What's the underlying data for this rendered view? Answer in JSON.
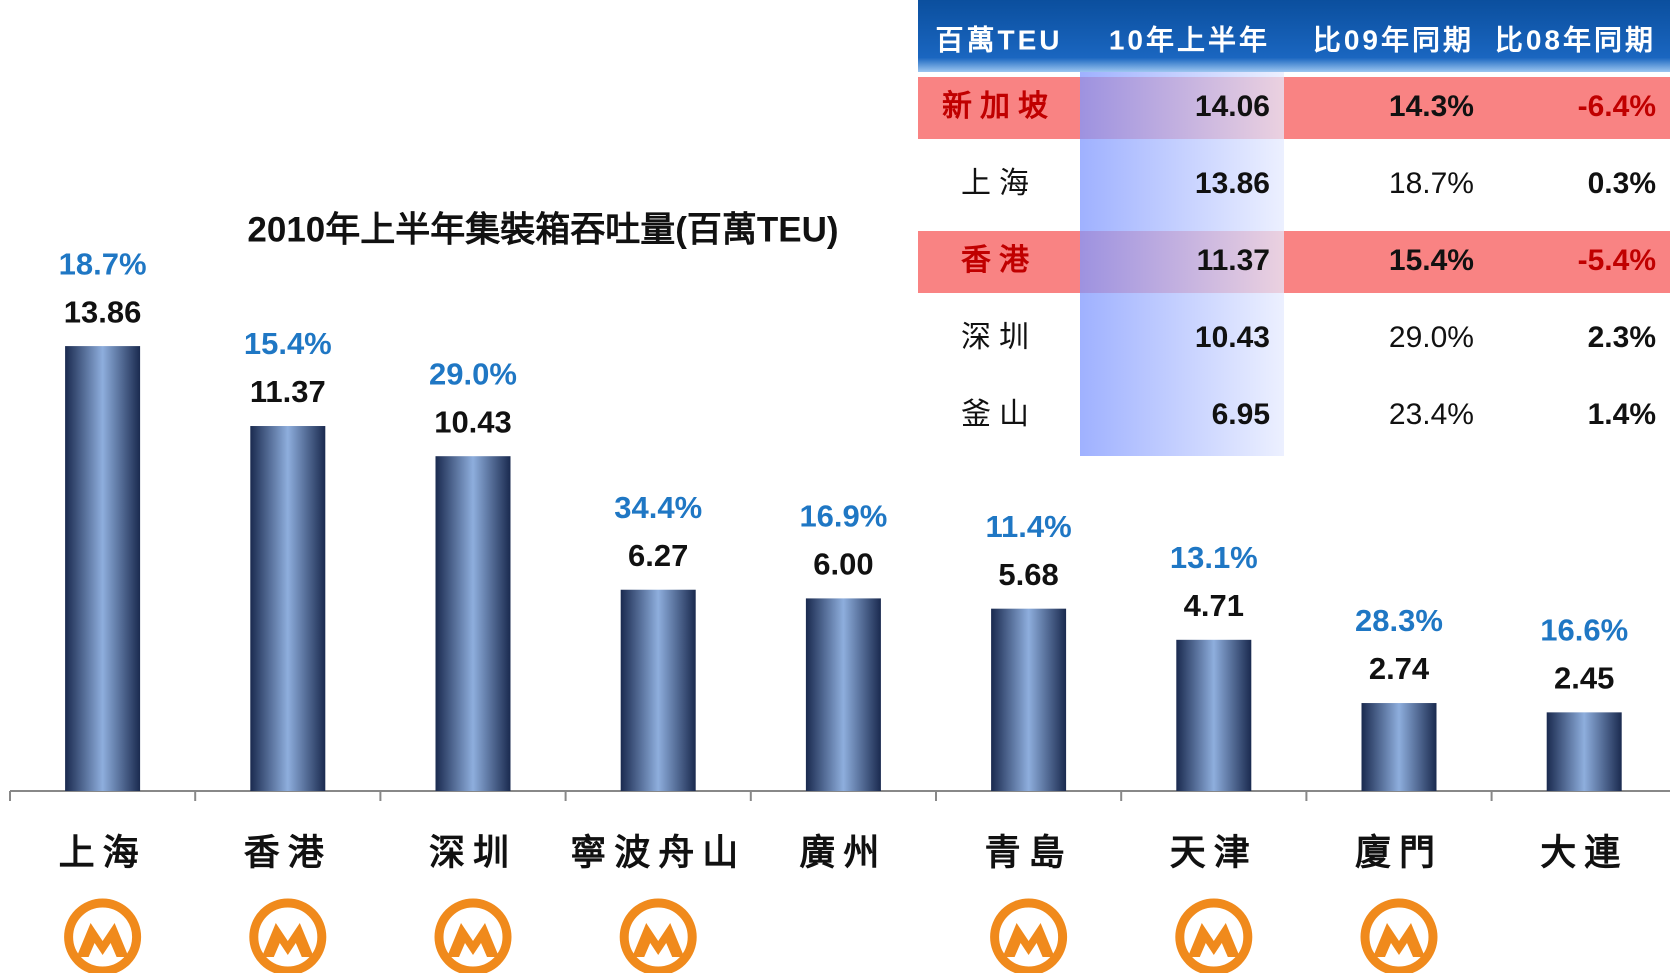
{
  "chart_data": {
    "type": "bar",
    "title": "2010年上半年集裝箱吞吐量(百萬TEU)",
    "categories": [
      "上海",
      "香港",
      "深圳",
      "寧波舟山",
      "廣州",
      "青島",
      "天津",
      "廈門",
      "大連"
    ],
    "series": [
      {
        "name": "10年上半年",
        "color": "#2a3f6b",
        "values": [
          13.86,
          11.37,
          10.43,
          6.27,
          6.0,
          5.68,
          4.71,
          2.74,
          2.45
        ],
        "value_labels": [
          "13.86",
          "11.37",
          "10.43",
          "6.27",
          "6.00",
          "5.68",
          "4.71",
          "2.74",
          "2.45"
        ]
      }
    ],
    "growth": {
      "values": [
        18.7,
        15.4,
        29.0,
        34.4,
        16.9,
        11.4,
        13.1,
        28.3,
        16.6
      ],
      "value_labels": [
        "18.7%",
        "15.4%",
        "29.0%",
        "34.4%",
        "16.9%",
        "11.4%",
        "13.1%",
        "28.3%",
        "16.6%"
      ],
      "color": "#1f77c4"
    },
    "logos": [
      true,
      true,
      true,
      true,
      false,
      true,
      true,
      true,
      false
    ]
  },
  "table": {
    "header": [
      "百萬TEU",
      "10年上半年",
      "比09年同期",
      "比08年同期"
    ],
    "rows": [
      {
        "cells": [
          "新加坡",
          "14.06",
          "14.3%",
          "-6.4%"
        ],
        "highlight": true
      },
      {
        "cells": [
          "上海",
          "13.86",
          "18.7%",
          "0.3%"
        ],
        "highlight": false
      },
      {
        "cells": [
          "香港",
          "11.37",
          "15.4%",
          "-5.4%"
        ],
        "highlight": true
      },
      {
        "cells": [
          "深圳",
          "10.43",
          "29.0%",
          "2.3%"
        ],
        "highlight": false
      },
      {
        "cells": [
          "釜山",
          "6.95",
          "23.4%",
          "1.4%"
        ],
        "highlight": false
      }
    ]
  }
}
